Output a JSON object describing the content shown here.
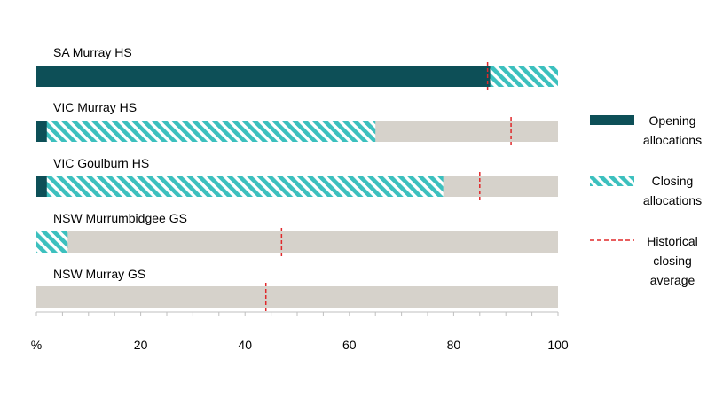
{
  "chart_data": {
    "type": "bar",
    "orientation": "horizontal",
    "categories": [
      "SA Murray HS",
      "VIC Murray HS",
      "VIC Goulburn HS",
      "NSW Murrumbidgee GS",
      "NSW Murray GS"
    ],
    "series": [
      {
        "name": "Opening allocations",
        "values": [
          87,
          2,
          2,
          0,
          0
        ],
        "color": "#0d4f57",
        "pattern": "solid"
      },
      {
        "name": "Closing allocations",
        "values": [
          100,
          65,
          78,
          6,
          0
        ],
        "color": "#3cc0be",
        "pattern": "diagonal-hatch"
      },
      {
        "name": "Historical closing average",
        "values": [
          86.5,
          91,
          85,
          47,
          44
        ],
        "color": "#e0282a",
        "pattern": "dashed-marker"
      }
    ],
    "background_color": "#d6d2cb",
    "xlim": [
      0,
      100
    ],
    "xticks": [
      0,
      20,
      40,
      60,
      80,
      100
    ],
    "tick_labels": [
      "%",
      "20",
      "40",
      "60",
      "80",
      "100"
    ],
    "legend_labels": [
      [
        "Opening",
        "allocations"
      ],
      [
        "Closing",
        "allocations"
      ],
      [
        "Historical",
        "closing",
        "average"
      ]
    ],
    "legend_position": "right",
    "grid": false
  }
}
